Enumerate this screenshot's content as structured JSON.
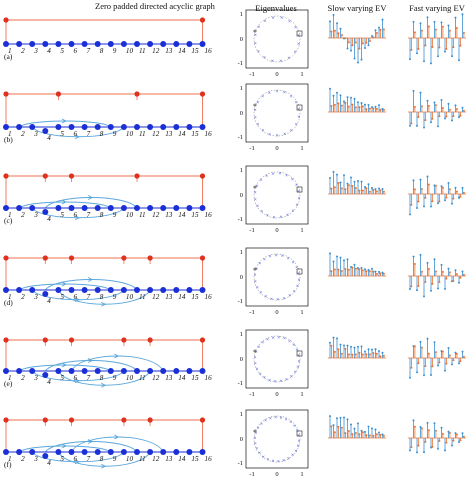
{
  "headers": {
    "graph": "Zero padded directed acyclic graph",
    "eigen": "Eigenvalues",
    "slow": "Slow varying EV",
    "fast": "Fast varying EV"
  },
  "node_labels": [
    "1",
    "2",
    "3",
    "4",
    "5",
    "6",
    "7",
    "8",
    "9",
    "10",
    "11",
    "12",
    "13",
    "14",
    "15",
    "16"
  ],
  "rows": [
    {
      "label": "(a)"
    },
    {
      "label": "(b)"
    },
    {
      "label": "(c)"
    },
    {
      "label": "(d)"
    },
    {
      "label": "(e)"
    },
    {
      "label": "(f)"
    }
  ],
  "eigen_ticks": {
    "x": [
      "-1",
      "0",
      "1"
    ],
    "y": [
      "1",
      "0",
      "-1"
    ]
  },
  "colors": {
    "node": "#1a2fd6",
    "red": "#e0301e",
    "edge_blue": "#5aa7dc",
    "edge_red": "#f07050",
    "stem_blue": "#3b8fd0",
    "stem_orange": "#e8753a",
    "axis": "#111111"
  }
}
